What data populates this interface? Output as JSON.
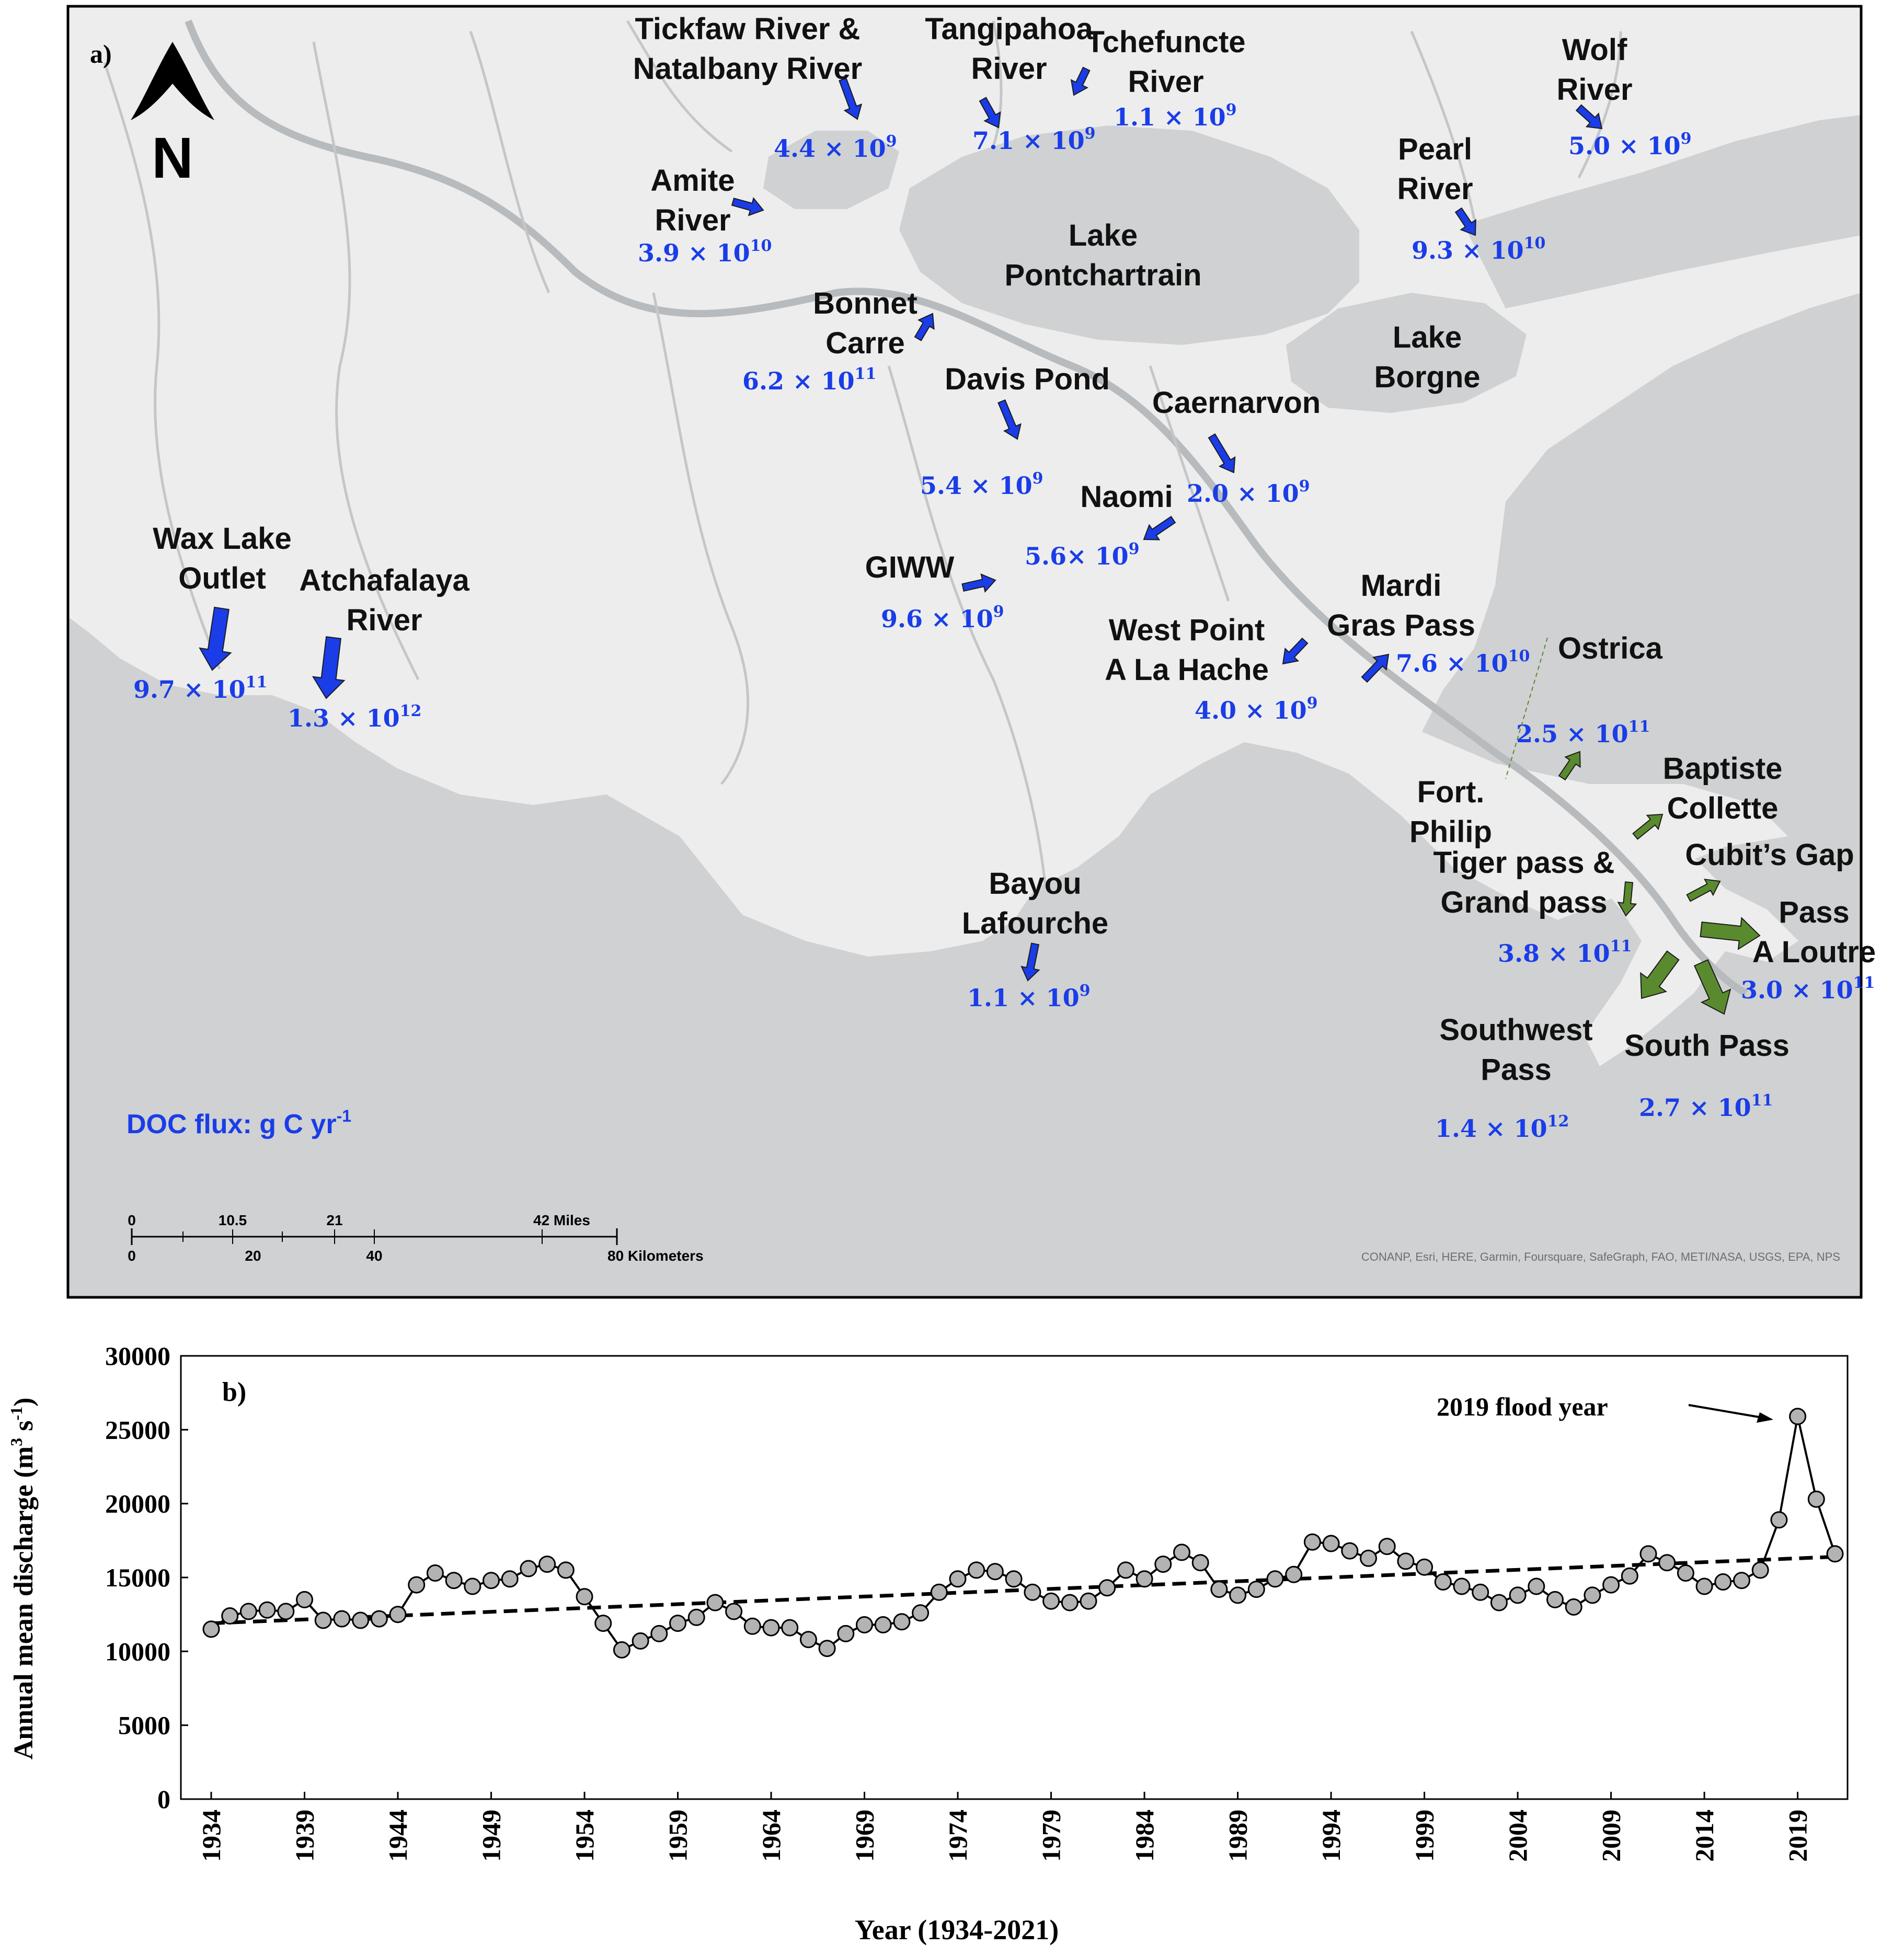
{
  "panel_a": {
    "label": "a)",
    "north": "N",
    "legend": "DOC flux: g C yr",
    "legend_exp": "-1",
    "attribution": "CONANP, Esri, HERE, Garmin, Foursquare, SafeGraph, FAO, METI/NASA, USGS, EPA, NPS",
    "scale_miles": [
      "0",
      "10.5",
      "21",
      "42 Miles"
    ],
    "scale_km": [
      "0",
      "20",
      "40",
      "80 Kilometers"
    ],
    "water_bodies": [
      {
        "id": "pontchartrain",
        "lines": [
          "Lake",
          "Pontchartrain"
        ]
      },
      {
        "id": "borgne",
        "lines": [
          "Lake",
          "Borgne"
        ]
      }
    ],
    "sites": [
      {
        "id": "tickfaw",
        "lines": [
          "Tickfaw River &",
          "Natalbany River"
        ],
        "flux": "4.4 × 10",
        "exp": "9",
        "color": "blue"
      },
      {
        "id": "tangipahoa",
        "lines": [
          "Tangipahoa",
          "River"
        ],
        "flux": "7.1 × 10",
        "exp": "9",
        "color": "blue"
      },
      {
        "id": "tchefuncte",
        "lines": [
          "Tchefuncte",
          "River"
        ],
        "flux": "1.1 × 10",
        "exp": "9",
        "color": "blue"
      },
      {
        "id": "wolf",
        "lines": [
          "Wolf",
          "River"
        ],
        "flux": "5.0 × 10",
        "exp": "9",
        "color": "blue"
      },
      {
        "id": "amite",
        "lines": [
          "Amite",
          "River"
        ],
        "flux": "3.9 × 10",
        "exp": "10",
        "color": "blue"
      },
      {
        "id": "pearl",
        "lines": [
          "Pearl",
          "River"
        ],
        "flux": "9.3 × 10",
        "exp": "10",
        "color": "blue"
      },
      {
        "id": "bonnet",
        "lines": [
          "Bonnet",
          "Carre"
        ],
        "flux": "6.2 × 10",
        "exp": "11",
        "color": "blue"
      },
      {
        "id": "davis",
        "lines": [
          "Davis Pond"
        ],
        "flux": "5.4 × 10",
        "exp": "9",
        "color": "blue"
      },
      {
        "id": "caernarvon",
        "lines": [
          "Caernarvon"
        ],
        "flux": "2.0 × 10",
        "exp": "9",
        "color": "blue"
      },
      {
        "id": "naomi",
        "lines": [
          "Naomi"
        ],
        "flux": "5.6× 10",
        "exp": "9",
        "color": "blue"
      },
      {
        "id": "waxlake",
        "lines": [
          "Wax Lake",
          "Outlet"
        ],
        "flux": "9.7 × 10",
        "exp": "11",
        "color": "blue"
      },
      {
        "id": "atchafalaya",
        "lines": [
          "Atchafalaya",
          "River"
        ],
        "flux": "1.3 × 10",
        "exp": "12",
        "color": "blue"
      },
      {
        "id": "giww",
        "lines": [
          "GIWW"
        ],
        "flux": "9.6 × 10",
        "exp": "9",
        "color": "blue"
      },
      {
        "id": "westpoint",
        "lines": [
          "West Point",
          "A La Hache"
        ],
        "flux": "4.0 × 10",
        "exp": "9",
        "color": "blue"
      },
      {
        "id": "mardigras",
        "lines": [
          "Mardi",
          "Gras Pass"
        ],
        "flux": "7.6 × 10",
        "exp": "10",
        "color": "blue"
      },
      {
        "id": "ostrica",
        "lines": [
          "Ostrica"
        ],
        "flux": "2.5 × 10",
        "exp": "11",
        "color": "green"
      },
      {
        "id": "fortphilip",
        "lines": [
          "Fort.",
          "Philip"
        ],
        "flux": "",
        "exp": "",
        "color": "none"
      },
      {
        "id": "baptiste",
        "lines": [
          "Baptiste",
          "Collette"
        ],
        "flux": "",
        "exp": "",
        "color": "green"
      },
      {
        "id": "cubits",
        "lines": [
          "Cubit’s Gap"
        ],
        "flux": "",
        "exp": "",
        "color": "green"
      },
      {
        "id": "tiger",
        "lines": [
          "Tiger pass &",
          "Grand pass"
        ],
        "flux": "3.8 × 10",
        "exp": "11",
        "color": "green"
      },
      {
        "id": "loutre",
        "lines": [
          "Pass",
          "A Loutre"
        ],
        "flux": "3.0 × 10",
        "exp": "11",
        "color": "green"
      },
      {
        "id": "bayou",
        "lines": [
          "Bayou",
          "Lafourche"
        ],
        "flux": "1.1 × 10",
        "exp": "9",
        "color": "blue"
      },
      {
        "id": "southwest",
        "lines": [
          "Southwest",
          "Pass"
        ],
        "flux": "1.4 × 10",
        "exp": "12",
        "color": "green"
      },
      {
        "id": "southpass",
        "lines": [
          "South Pass"
        ],
        "flux": "2.7 × 10",
        "exp": "11",
        "color": "green"
      }
    ],
    "colors": {
      "blue_arrow": "#1a3de8",
      "green_arrow": "#5a8a2e",
      "flux_text": "#1a3de8",
      "land": "#ededed",
      "water": "#cfd1d2"
    }
  },
  "chart_data": {
    "type": "line",
    "panel_label": "b)",
    "xlabel": "Year (1934-2021)",
    "ylabel": "Annual mean discharge (m",
    "ylabel_units_tail": [
      "3",
      " s",
      "-1",
      ")"
    ],
    "ylim": [
      0,
      30000
    ],
    "yticks": [
      0,
      5000,
      10000,
      15000,
      20000,
      25000,
      30000
    ],
    "xlim": [
      1934,
      2021
    ],
    "xticks": [
      1934,
      1939,
      1944,
      1949,
      1954,
      1959,
      1964,
      1969,
      1974,
      1979,
      1984,
      1989,
      1994,
      1999,
      2004,
      2009,
      2014,
      2019
    ],
    "annotation": "2019 flood year",
    "trend": {
      "start": [
        1934,
        11900
      ],
      "end": [
        2021,
        16400
      ],
      "style": "dashed"
    },
    "marker_color": "#b3b3b3",
    "x": [
      1934,
      1935,
      1936,
      1937,
      1938,
      1939,
      1940,
      1941,
      1942,
      1943,
      1944,
      1945,
      1946,
      1947,
      1948,
      1949,
      1950,
      1951,
      1952,
      1953,
      1954,
      1955,
      1956,
      1957,
      1958,
      1959,
      1960,
      1961,
      1962,
      1963,
      1964,
      1965,
      1966,
      1967,
      1968,
      1969,
      1970,
      1971,
      1972,
      1973,
      1974,
      1975,
      1976,
      1977,
      1978,
      1979,
      1980,
      1981,
      1982,
      1983,
      1984,
      1985,
      1986,
      1987,
      1988,
      1989,
      1990,
      1991,
      1992,
      1993,
      1994,
      1995,
      1996,
      1997,
      1998,
      1999,
      2000,
      2001,
      2002,
      2003,
      2004,
      2005,
      2006,
      2007,
      2008,
      2009,
      2010,
      2011,
      2012,
      2013,
      2014,
      2015,
      2016,
      2017,
      2018,
      2019,
      2020,
      2021
    ],
    "values": [
      11500,
      12400,
      12700,
      12800,
      12700,
      13500,
      12100,
      12200,
      12100,
      12200,
      12500,
      14500,
      15300,
      14800,
      14400,
      14800,
      14900,
      15600,
      15900,
      15500,
      13700,
      11900,
      10100,
      10700,
      11200,
      11900,
      12300,
      13300,
      12700,
      11700,
      11600,
      11600,
      10800,
      10200,
      11200,
      11800,
      11800,
      12000,
      12600,
      14000,
      14900,
      15500,
      15400,
      14900,
      14000,
      13400,
      13300,
      13400,
      14300,
      15500,
      14900,
      15900,
      16700,
      16000,
      14200,
      13800,
      14200,
      14900,
      15200,
      17400,
      17300,
      16800,
      16300,
      17100,
      16100,
      15700,
      14700,
      14400,
      14000,
      13300,
      13800,
      14400,
      13500,
      13000,
      13800,
      14500,
      15100,
      16600,
      16000,
      15300,
      14400,
      14700,
      14800,
      15500,
      18900,
      25900,
      20300,
      16600
    ]
  }
}
